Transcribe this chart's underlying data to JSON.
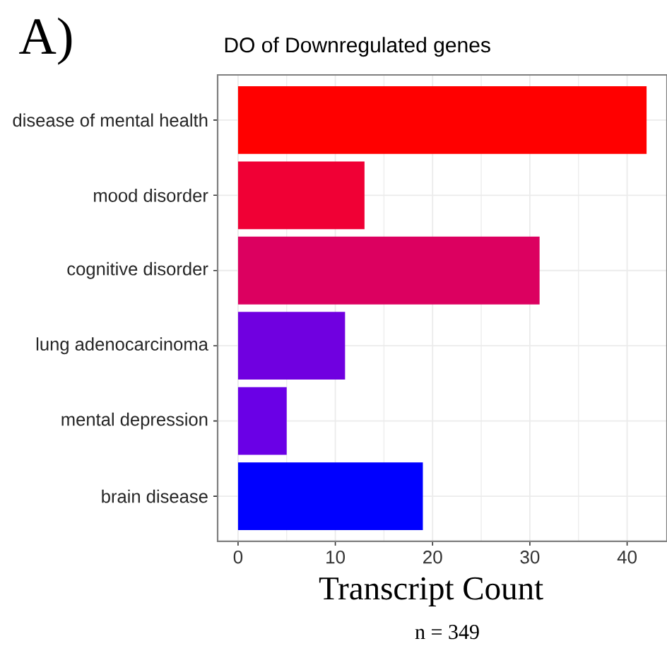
{
  "chart_data": {
    "type": "bar",
    "orientation": "horizontal",
    "title": "DO of Downregulated genes",
    "xlabel": "Transcript Count",
    "categories": [
      "disease of mental health",
      "mood disorder",
      "cognitive disorder",
      "lung adenocarcinoma",
      "mental depression",
      "brain disease"
    ],
    "values": [
      42,
      13,
      31,
      11,
      5,
      19
    ],
    "colors": [
      "#ff0000",
      "#f00035",
      "#dc0060",
      "#7000e0",
      "#6a00e6",
      "#0000ff"
    ],
    "xlim": [
      -2.1,
      44.1
    ],
    "xticks": [
      0,
      10,
      20,
      30,
      40
    ],
    "grid": true,
    "annotations": [
      "A)",
      "n = 349"
    ]
  }
}
